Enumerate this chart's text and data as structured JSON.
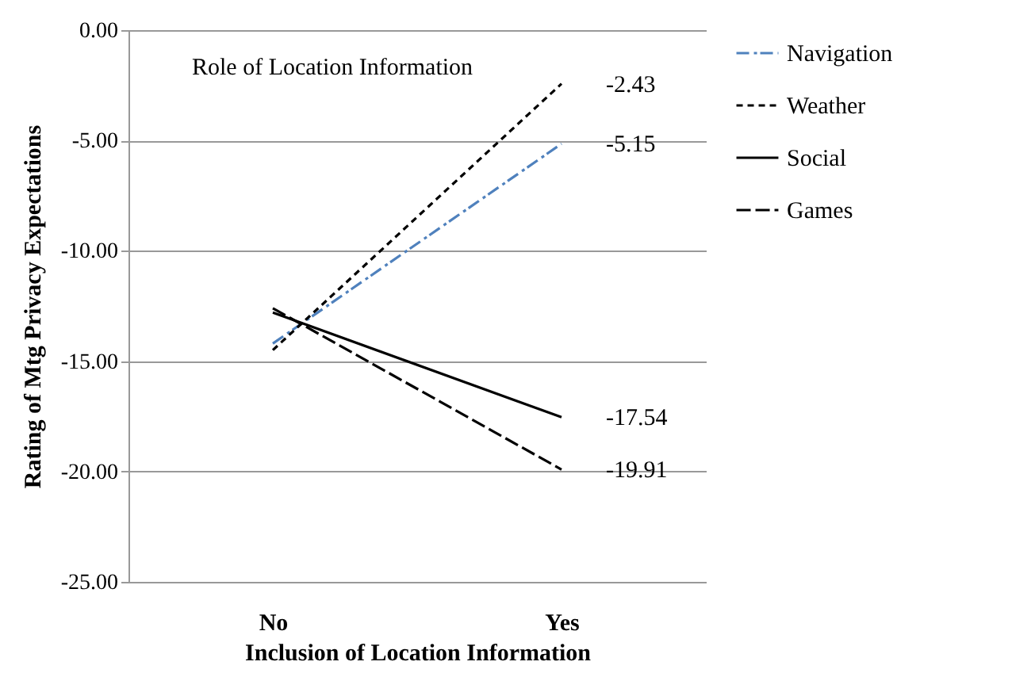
{
  "chart_data": {
    "type": "line",
    "xlabel": "Inclusion of Location Information",
    "ylabel": "Rating of Mtg Privacy Expectations",
    "annotations": [
      "Role of Location Information"
    ],
    "categories": [
      "No",
      "Yes"
    ],
    "series": [
      {
        "name": "Navigation",
        "color": "#4f81bd",
        "line_style": "dashdot",
        "values": [
          -14.2,
          -5.15
        ],
        "value_labels": [
          null,
          "-5.15"
        ]
      },
      {
        "name": "Weather",
        "color": "#000000",
        "line_style": "dashed",
        "values": [
          -14.5,
          -2.43
        ],
        "value_labels": [
          null,
          "-2.43"
        ]
      },
      {
        "name": "Social",
        "color": "#000000",
        "line_style": "solid",
        "values": [
          -12.8,
          -17.54
        ],
        "value_labels": [
          null,
          "-17.54"
        ]
      },
      {
        "name": "Games",
        "color": "#000000",
        "line_style": "longdash",
        "values": [
          -12.6,
          -19.91
        ],
        "value_labels": [
          null,
          "-19.91"
        ]
      }
    ],
    "ylim": [
      -25,
      0
    ],
    "yticks": [
      {
        "value": 0,
        "label": "0.00"
      },
      {
        "value": -5,
        "label": "-5.00"
      },
      {
        "value": -10,
        "label": "-10.00"
      },
      {
        "value": -15,
        "label": "-15.00"
      },
      {
        "value": -20,
        "label": "-20.00"
      },
      {
        "value": -25,
        "label": "-25.00"
      }
    ],
    "grid": "y",
    "legend": "right",
    "marker": "none"
  }
}
